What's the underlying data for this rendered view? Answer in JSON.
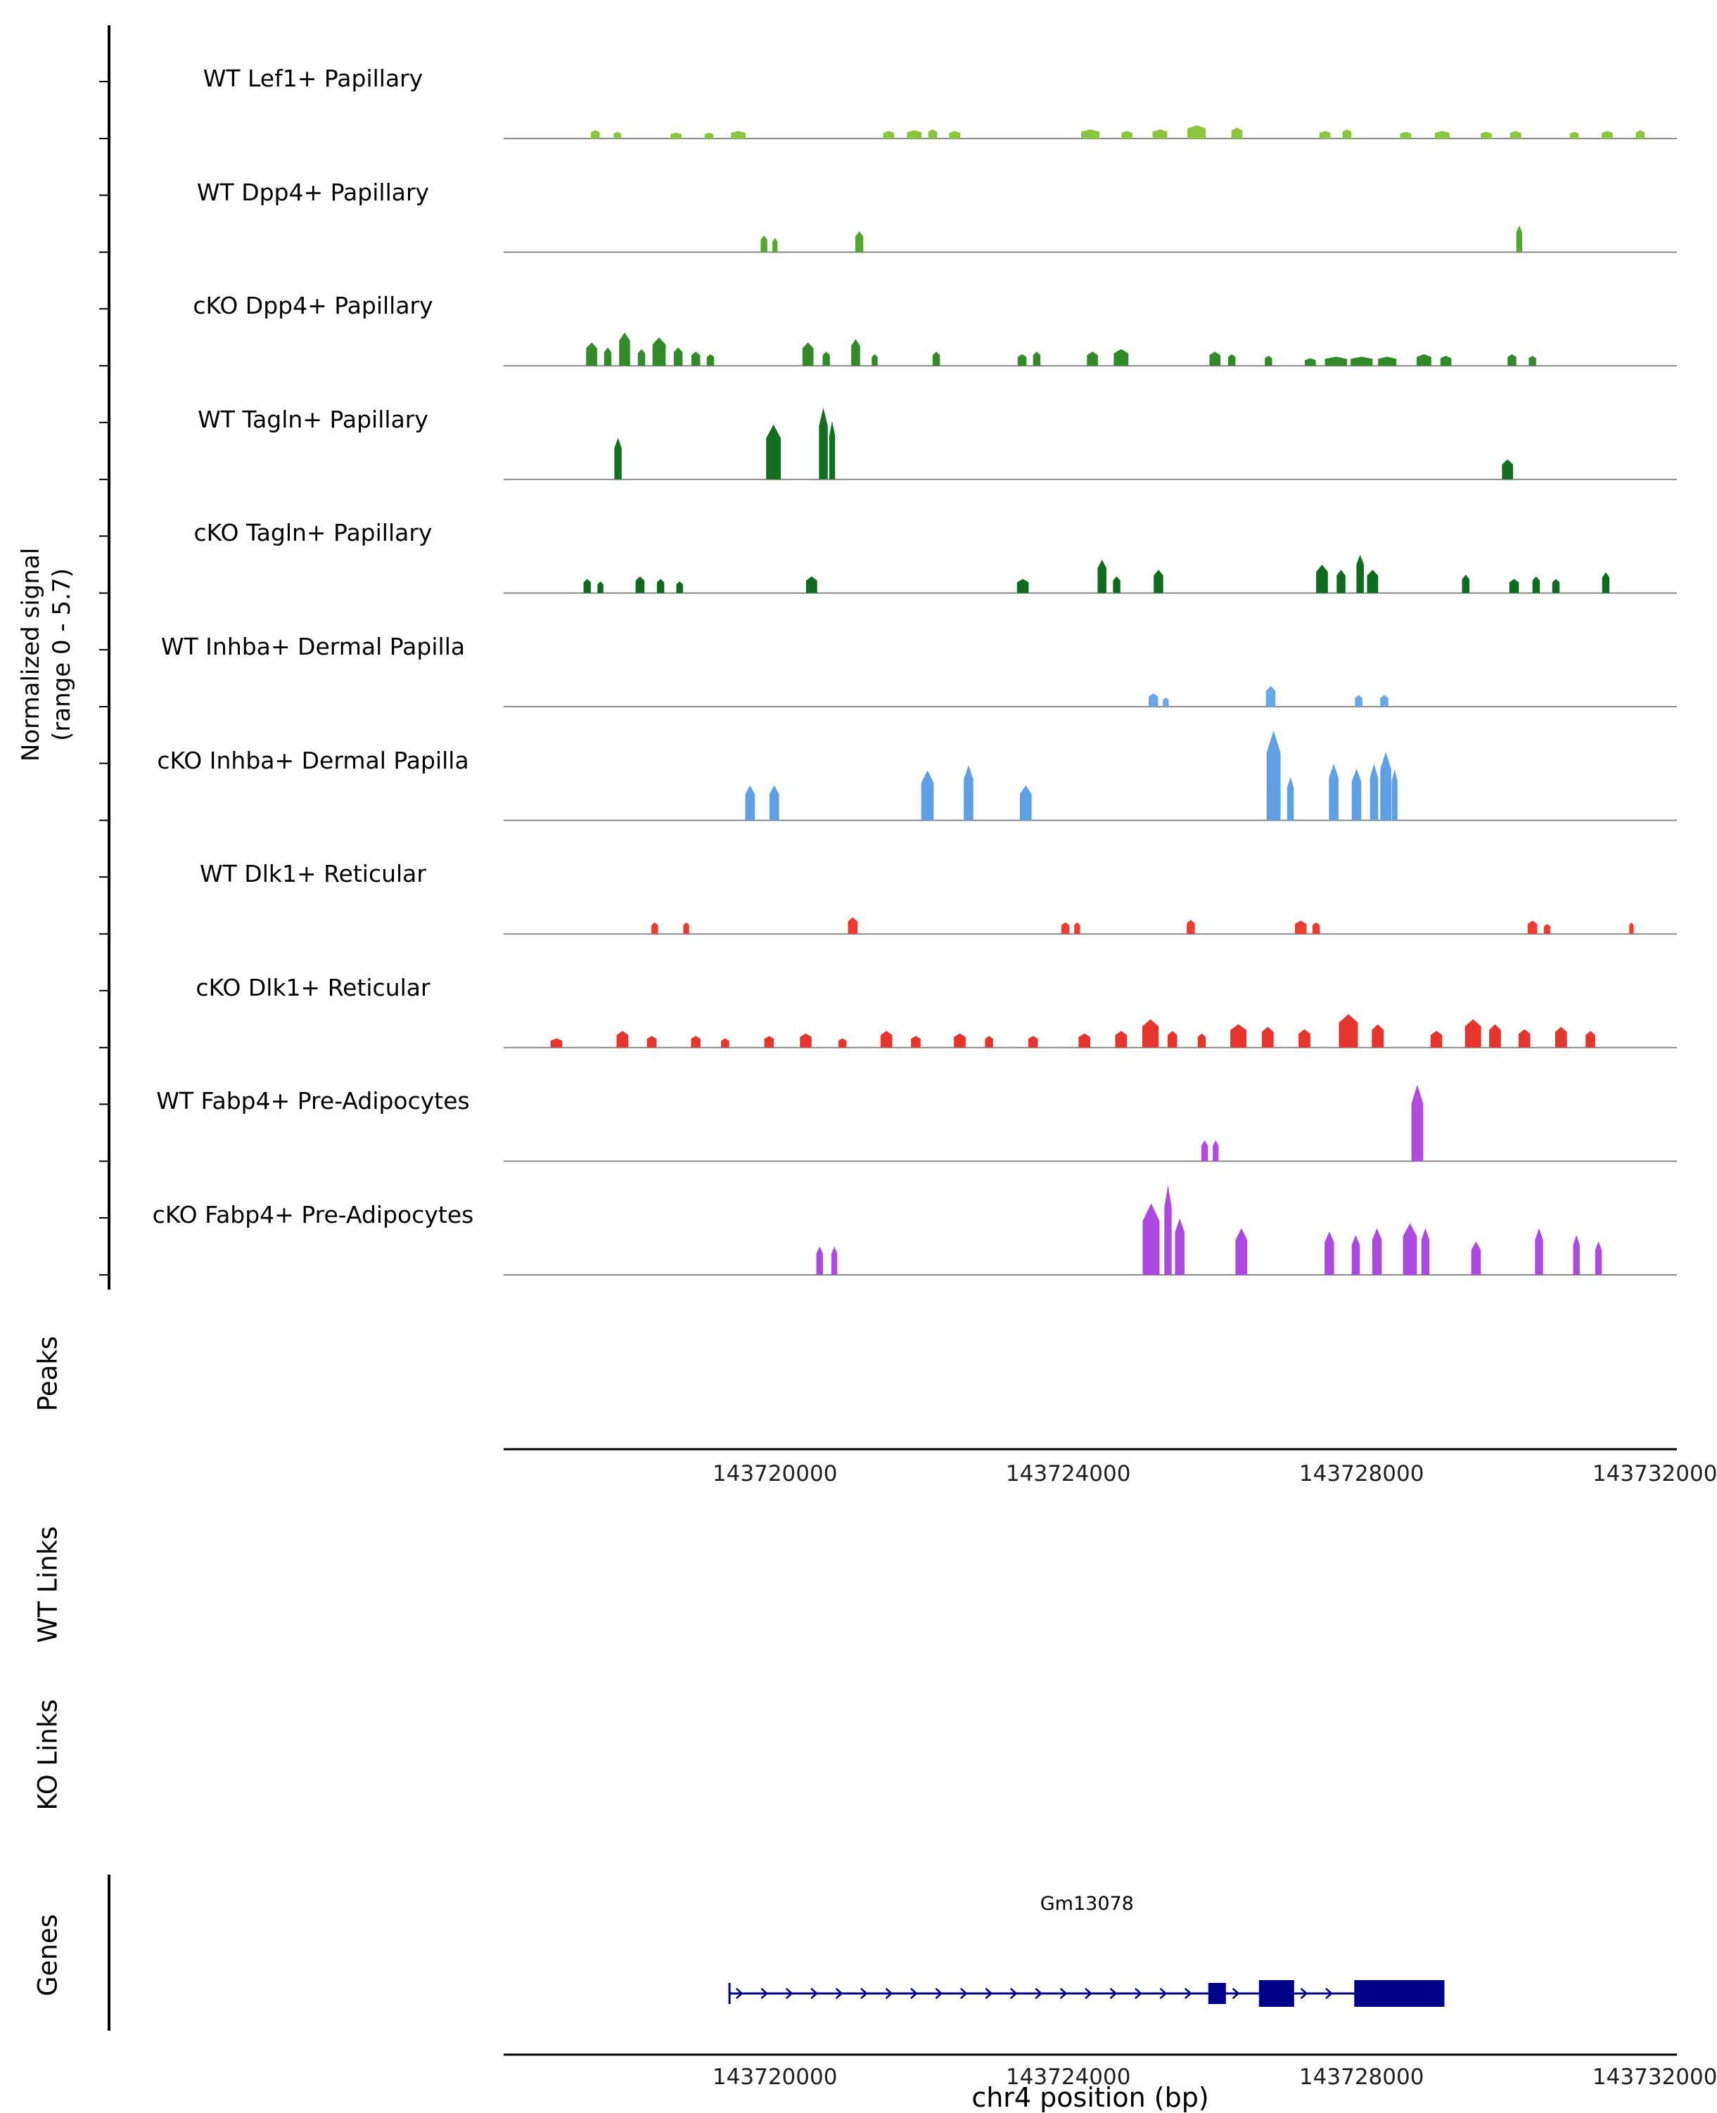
{
  "figure": {
    "xlabel": "chr4 position (bp)",
    "y_axis": {
      "label_line1": "Normalized signal",
      "label_line2": "(range 0 - 5.7)"
    },
    "sections": {
      "peaks": "Peaks",
      "wt_links": "WT Links",
      "ko_links": "KO Links",
      "genes": "Genes"
    }
  },
  "chart_data": {
    "type": "area",
    "title": "",
    "xlabel": "chr4 position (bp)",
    "ylabel": "Normalized signal (range 0 - 5.7)",
    "region": {
      "chrom": "chr4",
      "start": 143716300,
      "end": 143732300
    },
    "xticks": [
      143720000,
      143724000,
      143728000,
      143732000
    ],
    "ylim": [
      0,
      5.7
    ],
    "grid": false,
    "tracks": [
      {
        "label": "WT Lef1+ Papillary",
        "color": "#8CC63C",
        "peaks": [
          [
            143717550,
            120,
            0.5
          ],
          [
            143717850,
            100,
            0.4
          ],
          [
            143718650,
            150,
            0.35
          ],
          [
            143719100,
            120,
            0.35
          ],
          [
            143719500,
            200,
            0.45
          ],
          [
            143721550,
            150,
            0.45
          ],
          [
            143721900,
            200,
            0.5
          ],
          [
            143722150,
            120,
            0.55
          ],
          [
            143722450,
            150,
            0.45
          ],
          [
            143724300,
            250,
            0.55
          ],
          [
            143724800,
            150,
            0.45
          ],
          [
            143725250,
            200,
            0.55
          ],
          [
            143725750,
            250,
            0.8
          ],
          [
            143726300,
            150,
            0.65
          ],
          [
            143727500,
            150,
            0.45
          ],
          [
            143727800,
            120,
            0.55
          ],
          [
            143728600,
            150,
            0.4
          ],
          [
            143729100,
            200,
            0.45
          ],
          [
            143729700,
            150,
            0.4
          ],
          [
            143730100,
            150,
            0.45
          ],
          [
            143730900,
            120,
            0.4
          ],
          [
            143731350,
            150,
            0.45
          ],
          [
            143731800,
            120,
            0.5
          ]
        ]
      },
      {
        "label": "WT Dpp4+ Papillary",
        "color": "#55A82F",
        "peaks": [
          [
            143719850,
            90,
            1.0
          ],
          [
            143720000,
            70,
            0.85
          ],
          [
            143721150,
            110,
            1.25
          ],
          [
            143730150,
            80,
            1.6
          ]
        ]
      },
      {
        "label": "cKO Dpp4+ Papillary",
        "color": "#338A28",
        "peaks": [
          [
            143717500,
            150,
            1.4
          ],
          [
            143717720,
            100,
            1.1
          ],
          [
            143717950,
            150,
            2.0
          ],
          [
            143718180,
            100,
            1.0
          ],
          [
            143718420,
            180,
            1.7
          ],
          [
            143718680,
            120,
            1.1
          ],
          [
            143718920,
            120,
            0.85
          ],
          [
            143719120,
            100,
            0.7
          ],
          [
            143720450,
            150,
            1.4
          ],
          [
            143720700,
            100,
            0.85
          ],
          [
            143721100,
            120,
            1.6
          ],
          [
            143721360,
            80,
            0.7
          ],
          [
            143722200,
            100,
            0.85
          ],
          [
            143723370,
            120,
            0.7
          ],
          [
            143723570,
            100,
            0.85
          ],
          [
            143724330,
            150,
            0.85
          ],
          [
            143724720,
            200,
            1.0
          ],
          [
            143726000,
            150,
            0.85
          ],
          [
            143726230,
            100,
            0.7
          ],
          [
            143726730,
            100,
            0.6
          ],
          [
            143727300,
            150,
            0.45
          ],
          [
            143727650,
            300,
            0.55
          ],
          [
            143728000,
            300,
            0.55
          ],
          [
            143728350,
            250,
            0.55
          ],
          [
            143728850,
            200,
            0.7
          ],
          [
            143729150,
            150,
            0.6
          ],
          [
            143730050,
            120,
            0.7
          ],
          [
            143730330,
            100,
            0.6
          ]
        ]
      },
      {
        "label": "WT Tagln+ Papillary",
        "color": "#137021",
        "peaks": [
          [
            143717860,
            100,
            2.5
          ],
          [
            143719980,
            200,
            3.3
          ],
          [
            143720660,
            120,
            4.3
          ],
          [
            143720780,
            80,
            3.5
          ],
          [
            143729990,
            150,
            1.2
          ]
        ]
      },
      {
        "label": "cKO Tagln+ Papillary",
        "color": "#0E6B1F",
        "peaks": [
          [
            143717440,
            100,
            0.85
          ],
          [
            143717620,
            80,
            0.7
          ],
          [
            143718160,
            120,
            1.0
          ],
          [
            143718440,
            100,
            0.85
          ],
          [
            143718700,
            90,
            0.7
          ],
          [
            143720500,
            150,
            1.0
          ],
          [
            143723380,
            160,
            0.85
          ],
          [
            143724460,
            120,
            2.0
          ],
          [
            143724660,
            100,
            1.0
          ],
          [
            143725230,
            130,
            1.4
          ],
          [
            143727460,
            160,
            1.7
          ],
          [
            143727720,
            120,
            1.4
          ],
          [
            143727980,
            100,
            2.3
          ],
          [
            143728150,
            150,
            1.4
          ],
          [
            143729420,
            100,
            1.1
          ],
          [
            143730080,
            130,
            0.85
          ],
          [
            143730380,
            100,
            1.0
          ],
          [
            143730650,
            100,
            0.85
          ],
          [
            143731330,
            100,
            1.25
          ]
        ]
      },
      {
        "label": "WT Inhba+ Dermal Papilla",
        "color": "#68A8E8",
        "peaks": [
          [
            143725160,
            130,
            0.8
          ],
          [
            143725330,
            80,
            0.55
          ],
          [
            143726760,
            130,
            1.25
          ],
          [
            143727960,
            100,
            0.7
          ],
          [
            143728310,
            110,
            0.7
          ]
        ]
      },
      {
        "label": "cKO Inhba+ Dermal Papilla",
        "color": "#5FA0E4",
        "peaks": [
          [
            143719660,
            130,
            2.1
          ],
          [
            143719990,
            130,
            2.1
          ],
          [
            143722080,
            170,
            3.0
          ],
          [
            143722640,
            130,
            3.3
          ],
          [
            143723420,
            160,
            2.1
          ],
          [
            143726800,
            190,
            5.4
          ],
          [
            143727030,
            90,
            2.6
          ],
          [
            143727620,
            130,
            3.4
          ],
          [
            143727930,
            130,
            3.1
          ],
          [
            143728170,
            110,
            3.4
          ],
          [
            143728330,
            150,
            4.1
          ],
          [
            143728450,
            80,
            3.1
          ]
        ]
      },
      {
        "label": "WT Dlk1+ Reticular",
        "color": "#ED3B32",
        "peaks": [
          [
            143718360,
            90,
            0.7
          ],
          [
            143718790,
            80,
            0.7
          ],
          [
            143721060,
            130,
            1.0
          ],
          [
            143723960,
            110,
            0.7
          ],
          [
            143724120,
            80,
            0.7
          ],
          [
            143725670,
            110,
            0.85
          ],
          [
            143727170,
            160,
            0.8
          ],
          [
            143727380,
            100,
            0.7
          ],
          [
            143730330,
            130,
            0.8
          ],
          [
            143730530,
            90,
            0.6
          ],
          [
            143731680,
            60,
            0.7
          ]
        ]
      },
      {
        "label": "cKO Dlk1+ Reticular",
        "color": "#E6352C",
        "peaks": [
          [
            143717020,
            160,
            0.55
          ],
          [
            143717920,
            160,
            1.0
          ],
          [
            143718320,
            130,
            0.7
          ],
          [
            143718920,
            130,
            0.7
          ],
          [
            143719320,
            110,
            0.55
          ],
          [
            143719920,
            130,
            0.7
          ],
          [
            143720420,
            160,
            0.85
          ],
          [
            143720920,
            110,
            0.55
          ],
          [
            143721520,
            160,
            1.0
          ],
          [
            143721920,
            130,
            0.7
          ],
          [
            143722520,
            160,
            0.85
          ],
          [
            143722920,
            110,
            0.7
          ],
          [
            143723520,
            130,
            0.7
          ],
          [
            143724220,
            160,
            0.85
          ],
          [
            143724720,
            160,
            1.0
          ],
          [
            143725120,
            220,
            1.7
          ],
          [
            143725420,
            130,
            1.0
          ],
          [
            143725820,
            110,
            0.85
          ],
          [
            143726320,
            220,
            1.4
          ],
          [
            143726720,
            160,
            1.25
          ],
          [
            143727220,
            160,
            1.1
          ],
          [
            143727820,
            260,
            2.0
          ],
          [
            143728220,
            160,
            1.4
          ],
          [
            143729020,
            160,
            1.0
          ],
          [
            143729520,
            220,
            1.7
          ],
          [
            143729820,
            160,
            1.4
          ],
          [
            143730220,
            160,
            1.1
          ],
          [
            143730720,
            160,
            1.25
          ],
          [
            143731120,
            130,
            1.0
          ]
        ]
      },
      {
        "label": "WT Fabp4+ Pre-Adipocytes",
        "color": "#B14BE0",
        "peaks": [
          [
            143725860,
            90,
            1.25
          ],
          [
            143726010,
            80,
            1.25
          ],
          [
            143728760,
            160,
            4.6
          ]
        ]
      },
      {
        "label": "cKO Fabp4+ Pre-Adipocytes",
        "color": "#AC49E2",
        "peaks": [
          [
            143720610,
            90,
            1.7
          ],
          [
            143720810,
            80,
            1.7
          ],
          [
            143725130,
            230,
            4.3
          ],
          [
            143725360,
            100,
            5.4
          ],
          [
            143725520,
            130,
            3.4
          ],
          [
            143726360,
            160,
            2.8
          ],
          [
            143727560,
            130,
            2.6
          ],
          [
            143727920,
            110,
            2.4
          ],
          [
            143728210,
            130,
            2.8
          ],
          [
            143728660,
            190,
            3.1
          ],
          [
            143728870,
            110,
            2.8
          ],
          [
            143729560,
            130,
            2.0
          ],
          [
            143730420,
            110,
            2.8
          ],
          [
            143730930,
            90,
            2.4
          ],
          [
            143731230,
            90,
            2.0
          ]
        ]
      }
    ],
    "genes": [
      {
        "name": "Gm13078",
        "strand": "+",
        "start": 143719380,
        "end": 143729130,
        "exons": [
          [
            143725910,
            143726150
          ],
          [
            143726600,
            143727080
          ],
          [
            143727900,
            143729130
          ]
        ],
        "color": "#00008B"
      }
    ],
    "colors": {
      "axis": "#000000",
      "baseline": "#8A8A8A",
      "tick_text": "#1F1F1F"
    }
  }
}
